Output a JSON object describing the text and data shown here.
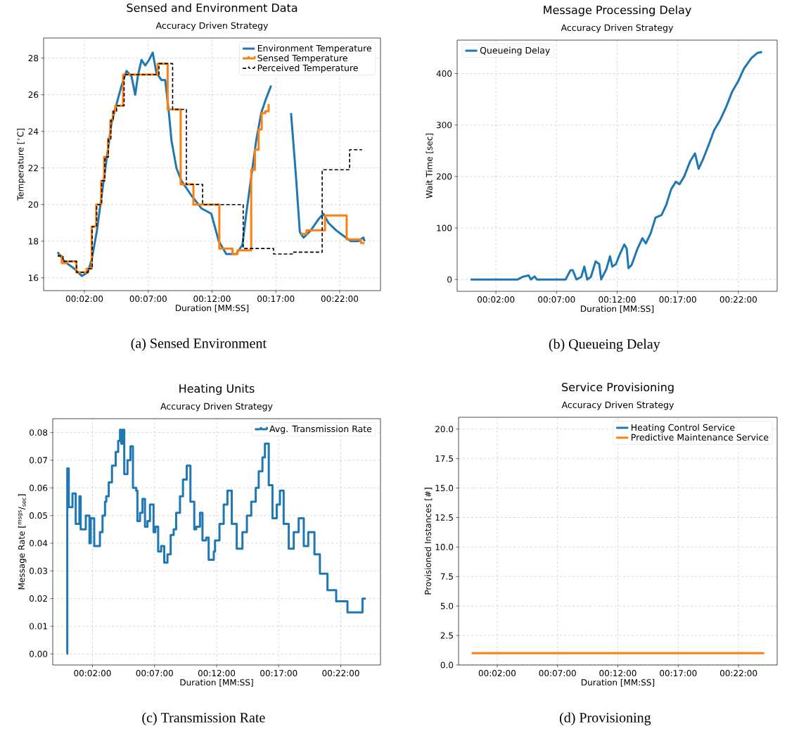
{
  "chart_data": [
    {
      "type": "line",
      "title": "Sensed and Environment Data",
      "subtitle": "Accuracy Driven Strategy",
      "xlabel": "Duration [MM:SS]",
      "ylabel": "Temperature [$^{∘}$C]",
      "xlim": [
        -1.2,
        25.2
      ],
      "ylim": [
        15.3,
        29.1
      ],
      "xticks": [
        {
          "value": 2,
          "label": "00:02:00"
        },
        {
          "value": 7,
          "label": "00:07:00"
        },
        {
          "value": 12,
          "label": "00:12:00"
        },
        {
          "value": 17,
          "label": "00:17:00"
        },
        {
          "value": 22,
          "label": "00:22:00"
        }
      ],
      "yticks": [
        16,
        18,
        20,
        22,
        24,
        26,
        28
      ],
      "grid": true,
      "legend": "top right",
      "series": [
        {
          "name": "Environment Temperature",
          "color": "#1f77b4",
          "type": "line",
          "x": [
            -0.1,
            0.42,
            1.2,
            1.79,
            2.27,
            2.57,
            2.96,
            3.35,
            3.74,
            4.13,
            4.52,
            4.91,
            5.3,
            5.69,
            5.98,
            6.18,
            6.47,
            6.77,
            7.06,
            7.35,
            7.64,
            8.04,
            8.33,
            8.62,
            8.82,
            9.21,
            9.6,
            10.38,
            11.16,
            11.94,
            12.53,
            13.11,
            13.89,
            14.38,
            14.68,
            15.07,
            15.46,
            15.85,
            16.24,
            16.63,
            16.92,
            17.21,
            17.51,
            17.8,
            18.19,
            18.58,
            18.88,
            19.17,
            19.75,
            20.34,
            20.73,
            21.12,
            21.71,
            22.29,
            22.88,
            23.46,
            23.86,
            23.95
          ],
          "values": [
            17.4,
            16.9,
            16.5,
            16.1,
            16.3,
            17.0,
            18.5,
            20.5,
            22.5,
            24.5,
            25.5,
            26.5,
            27.3,
            27.0,
            26.0,
            27.0,
            27.9,
            27.6,
            27.9,
            28.3,
            27.2,
            26.8,
            26.8,
            25.0,
            23.5,
            22.0,
            21.3,
            20.5,
            19.8,
            19.5,
            18.0,
            17.3,
            17.3,
            17.8,
            19.5,
            21.5,
            23.5,
            25.0,
            25.8,
            26.5,
            null,
            null,
            null,
            null,
            25.0,
            21.5,
            18.5,
            18.2,
            18.6,
            19.2,
            19.5,
            19.0,
            18.6,
            18.3,
            18.0,
            18.0,
            18.2,
            18.0
          ]
        },
        {
          "name": "Sensed Temperature",
          "color": "#ff7f0e",
          "type": "step",
          "x": [
            -0.1,
            0.22,
            0.61,
            1.36,
            2.18,
            2.57,
            2.92,
            3.31,
            3.54,
            3.84,
            4.03,
            4.23,
            4.42,
            5.03,
            7.74,
            8.52,
            9.54,
            10.54,
            12.57,
            13.6,
            13.99,
            15.07,
            15.36,
            15.65,
            15.89,
            16.18,
            16.43,
            16.79,
            18.97,
            19.4,
            20.85,
            22.55,
            23.66,
            23.95
          ],
          "values": [
            17.2,
            16.8,
            16.9,
            16.3,
            16.5,
            18.8,
            20.0,
            21.3,
            22.6,
            23.6,
            24.6,
            25.1,
            25.4,
            27.1,
            27.7,
            25.2,
            21.1,
            20.0,
            17.6,
            17.3,
            17.5,
            21.9,
            23.0,
            24.1,
            25.0,
            25.1,
            25.5,
            null,
            18.4,
            18.6,
            19.4,
            18.1,
            17.9,
            17.9
          ]
        },
        {
          "name": "Perceived Temperature",
          "color": "#000000",
          "type": "step",
          "line_style": "dashed",
          "x": [
            -0.1,
            0.32,
            1.39,
            2.27,
            2.61,
            2.96,
            3.35,
            3.6,
            3.88,
            4.07,
            4.27,
            4.52,
            5.11,
            7.84,
            8.91,
            9.99,
            11.26,
            14.44,
            16.82,
            18.35,
            20.63,
            22.78,
            23.76
          ],
          "values": [
            17.2,
            16.9,
            16.3,
            16.5,
            18.8,
            20.0,
            21.3,
            22.6,
            23.6,
            24.6,
            25.1,
            25.4,
            27.1,
            27.7,
            25.2,
            21.1,
            20.0,
            17.6,
            17.3,
            17.4,
            21.9,
            23.0,
            23.0
          ]
        }
      ],
      "annotations": [
        "(a) Sensed Environment"
      ]
    },
    {
      "type": "line",
      "title": "Message Processing Delay",
      "subtitle": "Accuracy Driven Strategy",
      "xlabel": "Duration [MM:SS]",
      "ylabel": "Wait Time [sec]",
      "xlim": [
        -1.2,
        25.2
      ],
      "ylim": [
        -23,
        465
      ],
      "xticks": [
        {
          "value": 2,
          "label": "00:02:00"
        },
        {
          "value": 7,
          "label": "00:07:00"
        },
        {
          "value": 12,
          "label": "00:12:00"
        },
        {
          "value": 17,
          "label": "00:17:00"
        },
        {
          "value": 22,
          "label": "00:22:00"
        }
      ],
      "yticks": [
        0,
        100,
        200,
        300,
        400
      ],
      "grid": true,
      "legend": "top left",
      "series": [
        {
          "name": "Queueing Delay",
          "color": "#1f77b4",
          "x": [
            -0.09,
            3.8,
            4.19,
            4.69,
            4.89,
            5.18,
            5.38,
            7.75,
            8.15,
            8.34,
            8.64,
            9.04,
            9.29,
            9.53,
            9.83,
            10.22,
            10.52,
            10.68,
            11.11,
            11.41,
            11.6,
            11.9,
            12.2,
            12.59,
            12.79,
            12.93,
            13.19,
            13.68,
            14.08,
            14.37,
            14.77,
            15.16,
            15.66,
            16.05,
            16.45,
            16.84,
            17.14,
            17.53,
            18.03,
            18.42,
            18.72,
            19.11,
            19.61,
            20.0,
            20.5,
            20.99,
            21.49,
            21.98,
            22.47,
            23.07,
            23.56,
            23.96
          ],
          "values": [
            0,
            0,
            5,
            8,
            0,
            6,
            0,
            0,
            18,
            18,
            0,
            5,
            25,
            0,
            5,
            35,
            30,
            0,
            20,
            45,
            25,
            30,
            48,
            68,
            60,
            22,
            28,
            60,
            80,
            70,
            90,
            120,
            125,
            145,
            175,
            190,
            185,
            200,
            230,
            245,
            215,
            235,
            265,
            290,
            310,
            335,
            365,
            385,
            410,
            430,
            440,
            442
          ]
        }
      ],
      "annotations": [
        "(b) Queueing Delay"
      ]
    },
    {
      "type": "step",
      "title": "Heating Units",
      "subtitle": "Accuracy Driven Strategy",
      "xlabel": "Duration [MM:SS]",
      "ylabel": "Message Rate [$^{msgs}$/$_{sec}$]",
      "xlim": [
        -1.2,
        25.2
      ],
      "ylim": [
        -0.004,
        0.085
      ],
      "xticks": [
        {
          "value": 2,
          "label": "00:02:00"
        },
        {
          "value": 7,
          "label": "00:07:00"
        },
        {
          "value": 12,
          "label": "00:12:00"
        },
        {
          "value": 17,
          "label": "00:17:00"
        },
        {
          "value": 22,
          "label": "00:22:00"
        }
      ],
      "yticks": [
        {
          "value": 0,
          "label": "0.00"
        },
        {
          "value": 0.01,
          "label": "0.01"
        },
        {
          "value": 0.02,
          "label": "0.02"
        },
        {
          "value": 0.03,
          "label": "0.03"
        },
        {
          "value": 0.04,
          "label": "0.04"
        },
        {
          "value": 0.05,
          "label": "0.05"
        },
        {
          "value": 0.06,
          "label": "0.06"
        },
        {
          "value": 0.07,
          "label": "0.07"
        },
        {
          "value": 0.08,
          "label": "0.08"
        }
      ],
      "grid": true,
      "legend": "top right",
      "series": [
        {
          "name": "Avg. Transmission Rate",
          "color": "#1f77b4",
          "x": [
            -0.05,
            -0.03,
            0.09,
            0.39,
            0.65,
            0.95,
            1.05,
            1.46,
            1.76,
            1.86,
            2.14,
            2.6,
            2.81,
            3.01,
            3.11,
            3.31,
            3.57,
            3.87,
            4.07,
            4.22,
            4.32,
            4.44,
            4.56,
            4.82,
            5.06,
            5.26,
            5.52,
            5.62,
            5.83,
            6.03,
            6.23,
            6.43,
            6.63,
            6.92,
            7.07,
            7.29,
            7.53,
            7.78,
            8.04,
            8.3,
            8.54,
            8.74,
            9.05,
            9.29,
            9.59,
            9.89,
            10.2,
            10.36,
            10.66,
            10.86,
            11.16,
            11.36,
            11.77,
            11.87,
            12.23,
            12.57,
            12.87,
            13.22,
            13.62,
            14.08,
            14.44,
            14.79,
            15.15,
            15.39,
            15.69,
            15.89,
            16.2,
            16.5,
            16.84,
            17.1,
            17.4,
            17.81,
            18.21,
            18.61,
            19.02,
            19.38,
            19.88,
            20.32,
            20.93,
            21.63,
            22.54,
            23.75,
            24.01
          ],
          "values": [
            0.0,
            0.067,
            0.053,
            0.058,
            0.047,
            0.057,
            0.045,
            0.05,
            0.04,
            0.049,
            0.039,
            0.044,
            0.05,
            0.055,
            0.057,
            0.062,
            0.068,
            0.073,
            0.077,
            0.081,
            0.076,
            0.081,
            0.065,
            0.07,
            0.075,
            0.06,
            0.059,
            0.048,
            0.051,
            0.056,
            0.046,
            0.048,
            0.054,
            0.044,
            0.046,
            0.037,
            0.039,
            0.033,
            0.036,
            0.043,
            0.045,
            0.051,
            0.057,
            0.063,
            0.068,
            0.055,
            0.045,
            0.046,
            0.051,
            0.041,
            0.042,
            0.034,
            0.037,
            0.041,
            0.047,
            0.054,
            0.059,
            0.047,
            0.038,
            0.044,
            0.05,
            0.055,
            0.06,
            0.066,
            0.071,
            0.076,
            0.061,
            0.049,
            0.054,
            0.059,
            0.047,
            0.038,
            0.044,
            0.049,
            0.039,
            0.044,
            0.036,
            0.029,
            0.023,
            0.019,
            0.015,
            0.02,
            0.02
          ]
        }
      ],
      "annotations": [
        "(c) Transmission Rate"
      ]
    },
    {
      "type": "line",
      "title": "Service Provisioning",
      "subtitle": "Accuracy Driven Strategy",
      "xlabel": "Duration [MM:SS]",
      "ylabel": "Provisioned Instances [#]",
      "xlim": [
        -1.2,
        25.2
      ],
      "ylim": [
        0,
        21
      ],
      "xticks": [
        {
          "value": 2,
          "label": "00:02:00"
        },
        {
          "value": 7,
          "label": "00:07:00"
        },
        {
          "value": 12,
          "label": "00:12:00"
        },
        {
          "value": 17,
          "label": "00:17:00"
        },
        {
          "value": 22,
          "label": "00:22:00"
        }
      ],
      "yticks": [
        {
          "value": 0,
          "label": "0.0"
        },
        {
          "value": 2.5,
          "label": "2.5"
        },
        {
          "value": 5,
          "label": "5.0"
        },
        {
          "value": 7.5,
          "label": "7.5"
        },
        {
          "value": 10,
          "label": "10.0"
        },
        {
          "value": 12.5,
          "label": "12.5"
        },
        {
          "value": 15,
          "label": "15.0"
        },
        {
          "value": 17.5,
          "label": "17.5"
        },
        {
          "value": 20,
          "label": "20.0"
        }
      ],
      "grid": true,
      "legend": "top right",
      "series": [
        {
          "name": "Heating Control Service",
          "color": "#1f77b4"
        },
        {
          "name": "Predictive Maintenance Service",
          "color": "#ff7f0e",
          "x": [
            -0.12,
            24.12
          ],
          "values": [
            1,
            1
          ]
        }
      ],
      "annotations": [
        "(d) Provisioning"
      ]
    }
  ]
}
